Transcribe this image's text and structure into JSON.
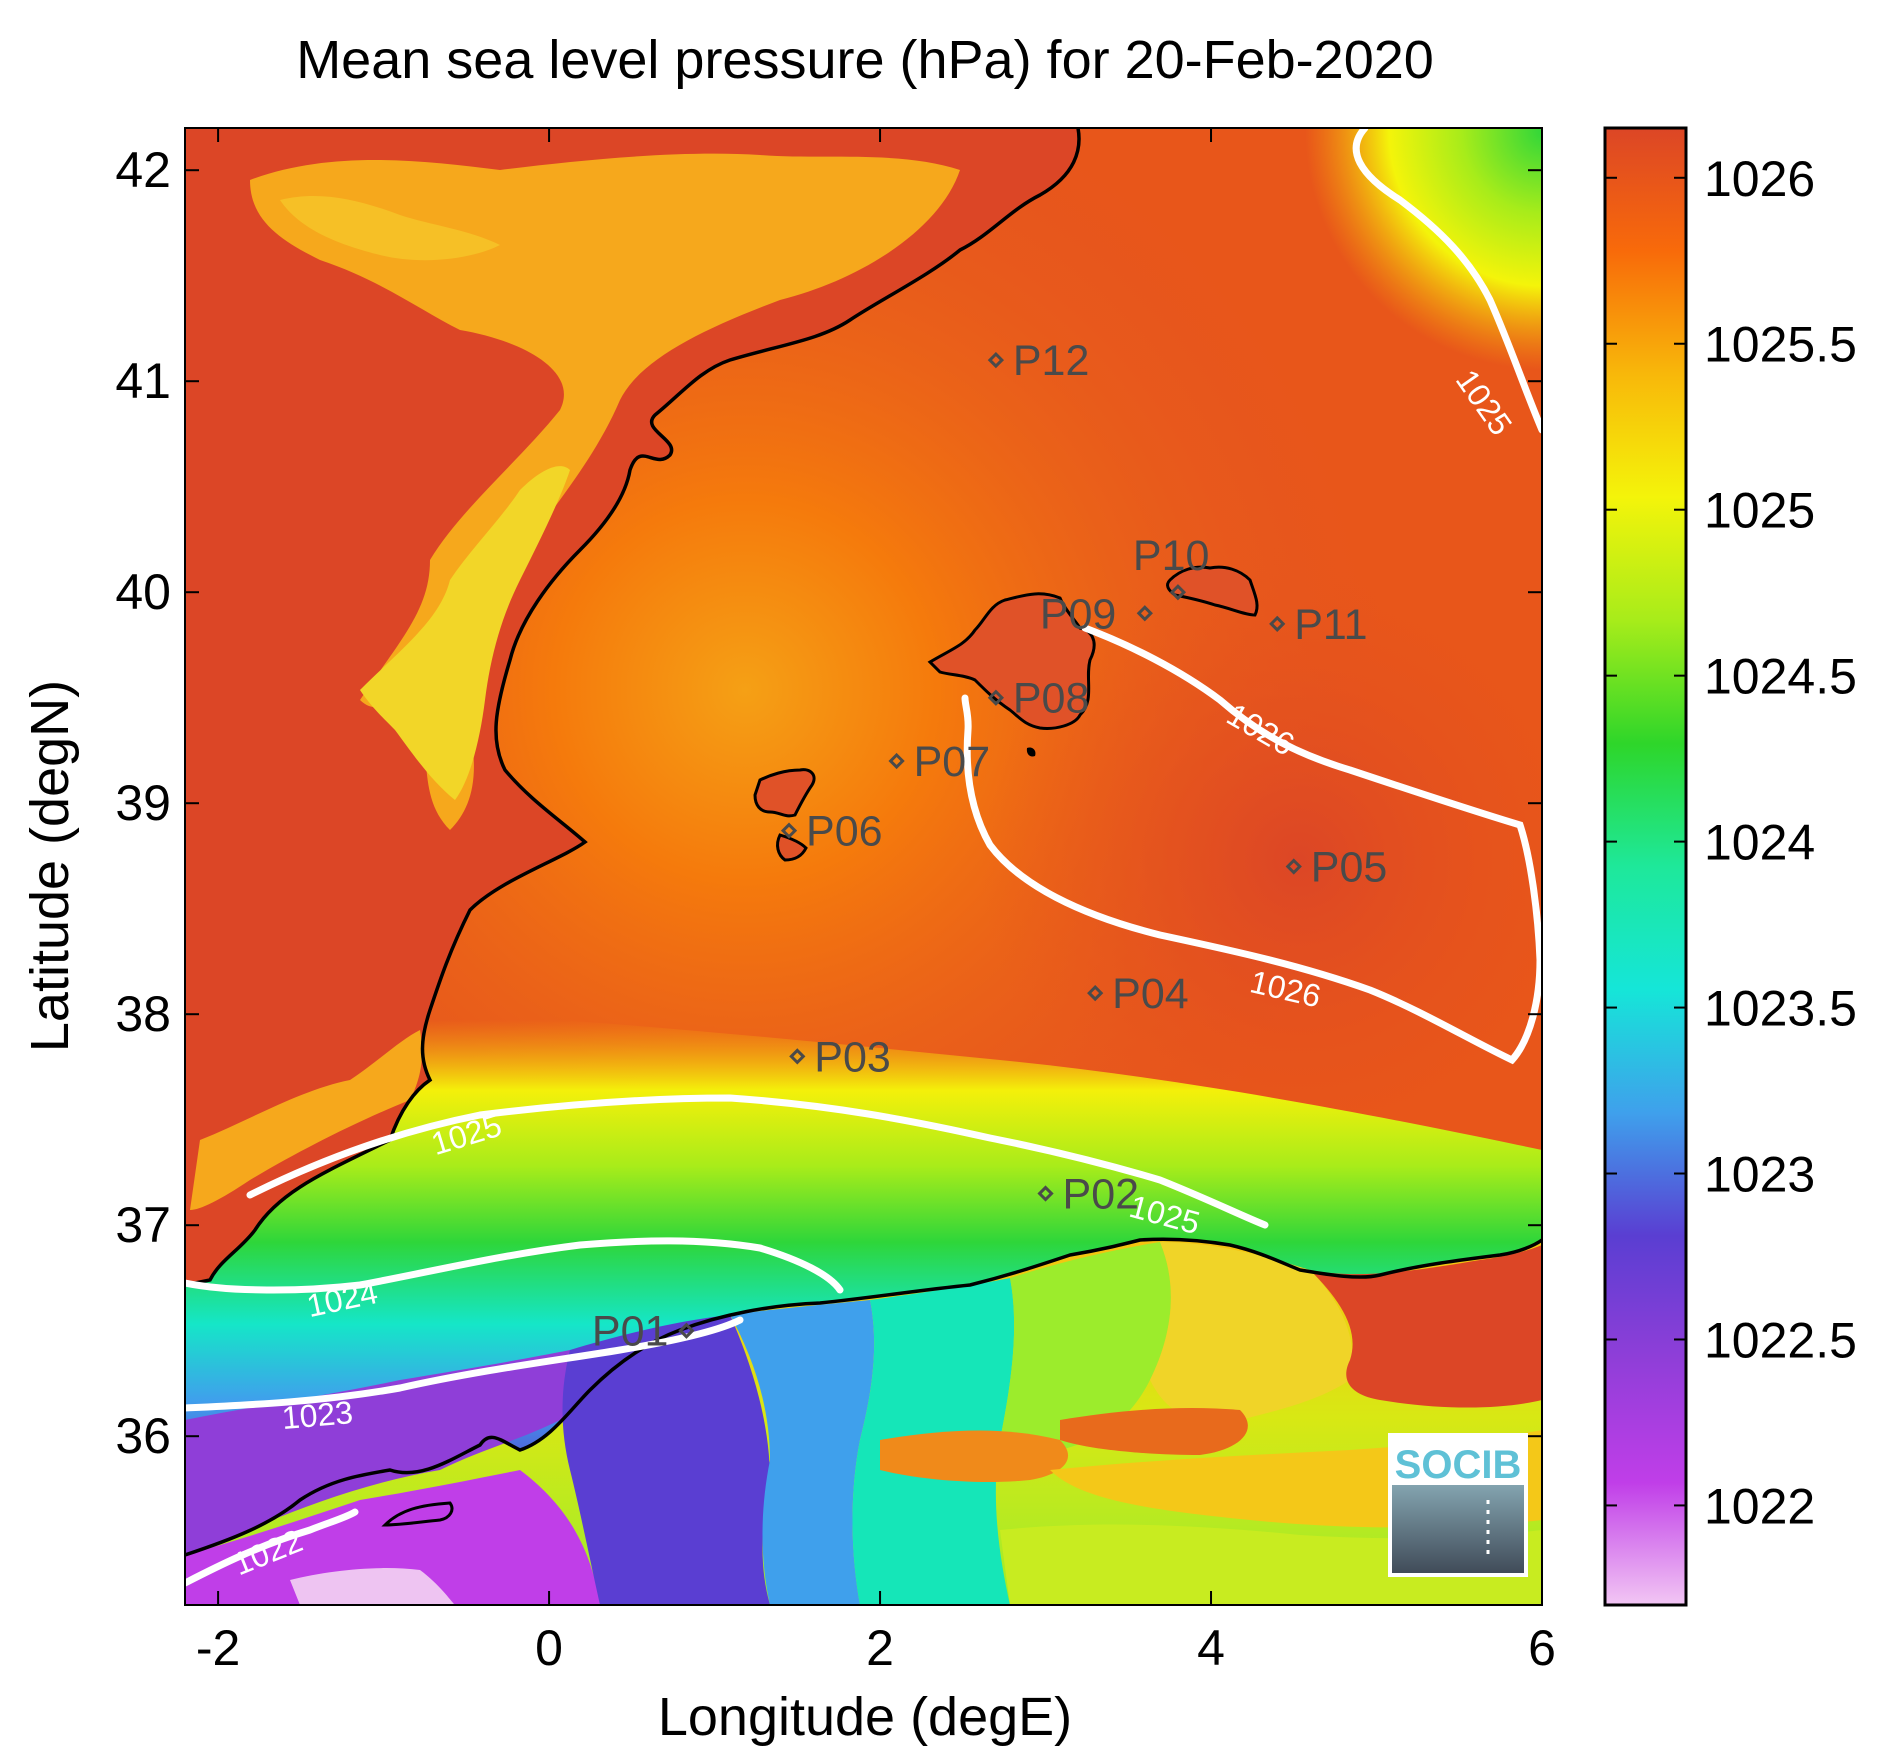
{
  "title": "Mean sea level pressure (hPa) for 20-Feb-2020",
  "x_axis": {
    "label": "Longitude (degE)",
    "range": [
      -2.2,
      6.0
    ],
    "ticks": [
      {
        "value": -2,
        "label": "-2"
      },
      {
        "value": 0,
        "label": "0"
      },
      {
        "value": 2,
        "label": "2"
      },
      {
        "value": 4,
        "label": "4"
      },
      {
        "value": 6,
        "label": "6"
      }
    ]
  },
  "y_axis": {
    "label": "Latitude (degN)",
    "range": [
      35.2,
      42.2
    ],
    "ticks": [
      {
        "value": 36,
        "label": "36"
      },
      {
        "value": 37,
        "label": "37"
      },
      {
        "value": 38,
        "label": "38"
      },
      {
        "value": 39,
        "label": "39"
      },
      {
        "value": 40,
        "label": "40"
      },
      {
        "value": 41,
        "label": "41"
      },
      {
        "value": 42,
        "label": "42"
      }
    ]
  },
  "colorbar": {
    "range": [
      1021.7,
      1026.15
    ],
    "ticks": [
      {
        "value": 1022,
        "label": "1022"
      },
      {
        "value": 1022.5,
        "label": "1022.5"
      },
      {
        "value": 1023,
        "label": "1023"
      },
      {
        "value": 1023.5,
        "label": "1023.5"
      },
      {
        "value": 1024,
        "label": "1024"
      },
      {
        "value": 1024.5,
        "label": "1024.5"
      },
      {
        "value": 1025,
        "label": "1025"
      },
      {
        "value": 1025.5,
        "label": "1025.5"
      },
      {
        "value": 1026,
        "label": "1026"
      }
    ],
    "colors": [
      "#f2c6f4",
      "#c03ee8",
      "#8f3ed8",
      "#5a3ed2",
      "#3fa0ec",
      "#15e6d8",
      "#1ee89a",
      "#2ed62a",
      "#a8ec1a",
      "#f4f40a",
      "#f8b80a",
      "#f86a0a",
      "#dc4626"
    ]
  },
  "stations": [
    {
      "id": "P01",
      "label": "P01",
      "lon": 0.83,
      "lat": 36.5
    },
    {
      "id": "P02",
      "label": "P02",
      "lon": 3.0,
      "lat": 37.15
    },
    {
      "id": "P03",
      "label": "P03",
      "lon": 1.5,
      "lat": 37.8
    },
    {
      "id": "P04",
      "label": "P04",
      "lon": 3.3,
      "lat": 38.1
    },
    {
      "id": "P05",
      "label": "P05",
      "lon": 4.5,
      "lat": 38.7
    },
    {
      "id": "P06",
      "label": "P06",
      "lon": 1.45,
      "lat": 38.87
    },
    {
      "id": "P07",
      "label": "P07",
      "lon": 2.1,
      "lat": 39.2
    },
    {
      "id": "P08",
      "label": "P08",
      "lon": 2.7,
      "lat": 39.5
    },
    {
      "id": "P09",
      "label": "P09",
      "lon": 3.6,
      "lat": 39.9
    },
    {
      "id": "P10",
      "label": "P10",
      "lon": 3.8,
      "lat": 40.0
    },
    {
      "id": "P11",
      "label": "P11",
      "lon": 4.4,
      "lat": 39.85
    },
    {
      "id": "P12",
      "label": "P12",
      "lon": 2.7,
      "lat": 41.1
    }
  ],
  "contours": [
    {
      "level": "1022",
      "label": "1022"
    },
    {
      "level": "1023",
      "label": "1023"
    },
    {
      "level": "1024",
      "label": "1024"
    },
    {
      "level": "1025",
      "label": "1025"
    },
    {
      "level": "1026",
      "label": "1026"
    }
  ],
  "contour_labels": [
    {
      "text": "1025",
      "lon": 5.65,
      "lat": 40.9,
      "rot": 55
    },
    {
      "text": "1025",
      "lon": -0.5,
      "lat": 37.43,
      "rot": -17
    },
    {
      "text": "1025",
      "lon": 3.72,
      "lat": 37.05,
      "rot": 15
    },
    {
      "text": "1024",
      "lon": -1.25,
      "lat": 36.65,
      "rot": -12
    },
    {
      "text": "1023",
      "lon": -1.4,
      "lat": 36.1,
      "rot": -5
    },
    {
      "text": "1022",
      "lon": -1.7,
      "lat": 35.45,
      "rot": -22
    },
    {
      "text": "1026",
      "lon": 4.3,
      "lat": 39.35,
      "rot": 30
    },
    {
      "text": "1026",
      "lon": 4.45,
      "lat": 38.12,
      "rot": 13
    }
  ],
  "logo": {
    "text": "SOCIB"
  }
}
